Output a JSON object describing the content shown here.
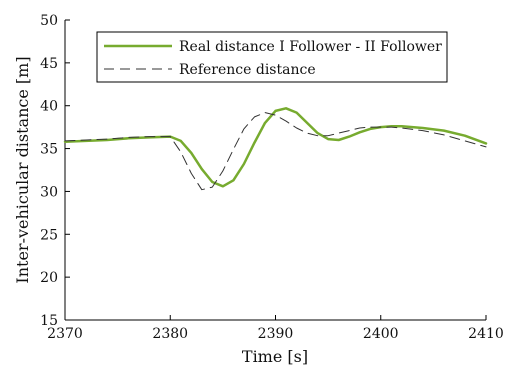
{
  "chart_data": {
    "type": "line",
    "xlabel": "Time [s]",
    "ylabel": "Inter-vehicular distance [m]",
    "xlim": [
      2370,
      2410
    ],
    "ylim": [
      15,
      50
    ],
    "x_ticks": [
      2370,
      2380,
      2390,
      2400,
      2410
    ],
    "y_ticks": [
      15,
      20,
      25,
      30,
      35,
      40,
      45,
      50
    ],
    "grid": false,
    "legend_position": "top-left",
    "series": [
      {
        "name": "Real distance I Follower - II Follower",
        "color": "#77ab2f",
        "style": "solid",
        "points": [
          [
            2370,
            35.8
          ],
          [
            2372,
            35.9
          ],
          [
            2374,
            36.0
          ],
          [
            2376,
            36.2
          ],
          [
            2378,
            36.3
          ],
          [
            2380,
            36.4
          ],
          [
            2381,
            35.9
          ],
          [
            2382,
            34.5
          ],
          [
            2383,
            32.6
          ],
          [
            2384,
            31.1
          ],
          [
            2385,
            30.6
          ],
          [
            2386,
            31.3
          ],
          [
            2387,
            33.2
          ],
          [
            2388,
            35.7
          ],
          [
            2389,
            38.0
          ],
          [
            2390,
            39.4
          ],
          [
            2391,
            39.7
          ],
          [
            2392,
            39.2
          ],
          [
            2393,
            38.0
          ],
          [
            2394,
            36.8
          ],
          [
            2395,
            36.1
          ],
          [
            2396,
            36.0
          ],
          [
            2397,
            36.4
          ],
          [
            2398,
            36.9
          ],
          [
            2399,
            37.3
          ],
          [
            2400,
            37.5
          ],
          [
            2401,
            37.6
          ],
          [
            2402,
            37.6
          ],
          [
            2404,
            37.4
          ],
          [
            2406,
            37.1
          ],
          [
            2408,
            36.5
          ],
          [
            2410,
            35.6
          ]
        ]
      },
      {
        "name": "Reference distance",
        "color": "#333333",
        "style": "dashed",
        "points": [
          [
            2370,
            35.9
          ],
          [
            2372,
            36.0
          ],
          [
            2374,
            36.1
          ],
          [
            2376,
            36.3
          ],
          [
            2378,
            36.4
          ],
          [
            2380,
            36.4
          ],
          [
            2381,
            34.6
          ],
          [
            2382,
            32.1
          ],
          [
            2383,
            30.2
          ],
          [
            2384,
            30.5
          ],
          [
            2385,
            32.4
          ],
          [
            2386,
            34.9
          ],
          [
            2387,
            37.3
          ],
          [
            2388,
            38.7
          ],
          [
            2389,
            39.2
          ],
          [
            2390,
            38.9
          ],
          [
            2391,
            38.2
          ],
          [
            2392,
            37.4
          ],
          [
            2393,
            36.8
          ],
          [
            2394,
            36.5
          ],
          [
            2395,
            36.5
          ],
          [
            2396,
            36.8
          ],
          [
            2397,
            37.1
          ],
          [
            2398,
            37.4
          ],
          [
            2399,
            37.5
          ],
          [
            2400,
            37.5
          ],
          [
            2401,
            37.5
          ],
          [
            2402,
            37.4
          ],
          [
            2404,
            37.1
          ],
          [
            2406,
            36.6
          ],
          [
            2408,
            35.9
          ],
          [
            2410,
            35.2
          ]
        ]
      }
    ]
  }
}
